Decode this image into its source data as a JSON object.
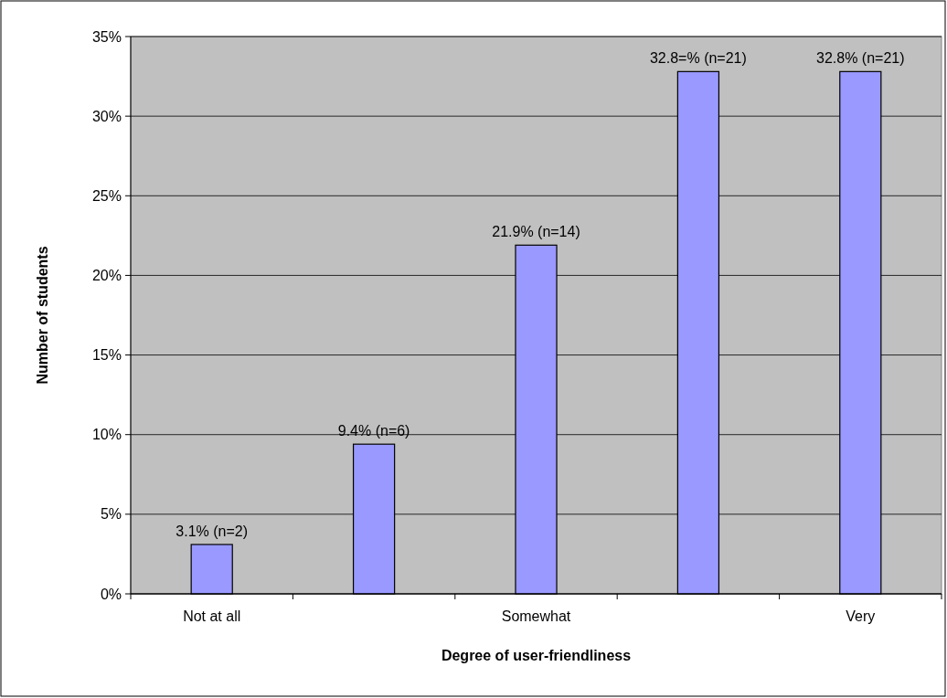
{
  "chart_data": {
    "type": "bar",
    "xlabel": "Degree of user-friendliness",
    "ylabel": "Number of students",
    "categories": [
      "Not at all",
      null,
      "Somewhat",
      null,
      "Very"
    ],
    "values": [
      3.1,
      9.4,
      21.9,
      32.8,
      32.8
    ],
    "value_labels": [
      "3.1% (n=2)",
      "9.4% (n=6)",
      "21.9% (n=14)",
      "32.8=% (n=21)",
      "32.8% (n=21)"
    ],
    "color": "#9999ff",
    "ylim": [
      0,
      35
    ],
    "yticks": [
      {
        "value": 0,
        "label": "0%"
      },
      {
        "value": 5,
        "label": "5%"
      },
      {
        "value": 10,
        "label": "10%"
      },
      {
        "value": 15,
        "label": "15%"
      },
      {
        "value": 20,
        "label": "20%"
      },
      {
        "value": 25,
        "label": "25%"
      },
      {
        "value": 30,
        "label": "30%"
      },
      {
        "value": 35,
        "label": "35%"
      }
    ],
    "grid": "y"
  }
}
